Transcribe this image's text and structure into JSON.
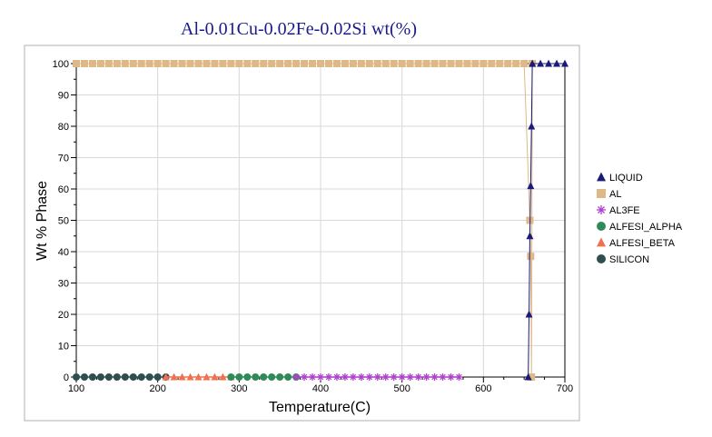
{
  "chart_data": {
    "type": "scatter",
    "title": "Al-0.01Cu-0.02Fe-0.02Si wt(%)",
    "xlabel": "Temperature(C)",
    "ylabel": "Wt % Phase",
    "xlim": [
      100,
      700
    ],
    "ylim": [
      0,
      100
    ],
    "xticks": [
      100,
      200,
      300,
      400,
      500,
      600,
      700
    ],
    "yticks": [
      0,
      10,
      20,
      30,
      40,
      50,
      60,
      70,
      80,
      90,
      100
    ],
    "grid": true,
    "legend_position": "right",
    "series": [
      {
        "name": "LIQUID",
        "color": "#1a1a7a",
        "marker": "triangle",
        "points": [
          [
            655,
            0
          ],
          [
            656,
            20
          ],
          [
            657,
            45
          ],
          [
            658,
            61
          ],
          [
            659,
            80
          ],
          [
            660,
            100
          ],
          [
            670,
            100
          ],
          [
            680,
            100
          ],
          [
            690,
            100
          ],
          [
            700,
            100
          ]
        ]
      },
      {
        "name": "AL",
        "color": "#deb887",
        "marker": "square",
        "x_range": [
          100,
          660
        ],
        "x_step": 10,
        "y_value": 100,
        "extra_points": [
          [
            657,
            50
          ],
          [
            658,
            38.5
          ],
          [
            659,
            0
          ]
        ]
      },
      {
        "name": "AL3FE",
        "color": "#b040d0",
        "marker": "asterisk",
        "x_range": [
          370,
          570
        ],
        "x_step": 10,
        "y_value": 0
      },
      {
        "name": "ALFESI_ALPHA",
        "color": "#2e8b57",
        "marker": "circle",
        "x_range": [
          290,
          370
        ],
        "x_step": 10,
        "y_value": 0
      },
      {
        "name": "ALFESI_BETA",
        "color": "#f07050",
        "marker": "triangle",
        "x_range": [
          210,
          290
        ],
        "x_step": 10,
        "y_value": 0
      },
      {
        "name": "SILICON",
        "color": "#2f4f4f",
        "marker": "circle",
        "x_range": [
          100,
          210
        ],
        "x_step": 10,
        "y_value": 0
      }
    ]
  }
}
